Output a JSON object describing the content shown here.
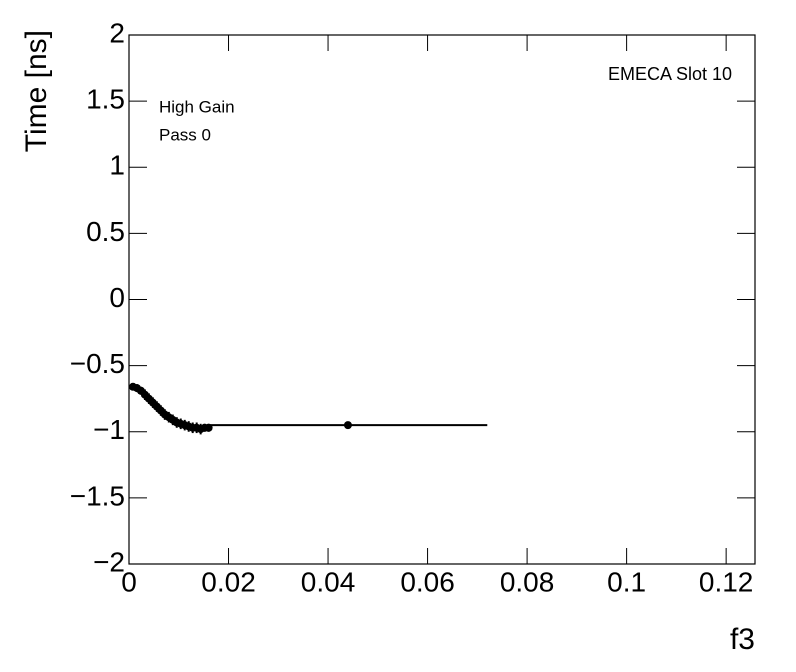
{
  "chart_data": {
    "type": "errorbar",
    "x_label": "f3",
    "y_label": "Time [ns]",
    "annotations": [
      "High Gain",
      "Pass 0"
    ],
    "corner_label": "EMECA Slot 10",
    "color": "#000000",
    "xlim": [
      0,
      0.1258
    ],
    "ylim": [
      -2,
      2
    ],
    "xticks": [
      0,
      0.02,
      0.04,
      0.06,
      0.08,
      0.1,
      0.12
    ],
    "yticks": [
      {
        "value": -2,
        "label": "−2"
      },
      {
        "value": -1.5,
        "label": "−1.5"
      },
      {
        "value": -1,
        "label": "−1"
      },
      {
        "value": -0.5,
        "label": "−0.5"
      },
      0,
      0.5,
      1,
      1.5,
      2
    ],
    "x": [
      0.0008,
      0.0016,
      0.0024,
      0.0032,
      0.004,
      0.0048,
      0.0056,
      0.0064,
      0.0072,
      0.008,
      0.0088,
      0.0096,
      0.0104,
      0.0112,
      0.012,
      0.0128,
      0.0136,
      0.0144,
      0.0152,
      0.016,
      0.044
    ],
    "values": [
      -0.66,
      -0.67,
      -0.69,
      -0.72,
      -0.75,
      -0.78,
      -0.81,
      -0.84,
      -0.87,
      -0.89,
      -0.91,
      -0.93,
      -0.94,
      -0.95,
      -0.96,
      -0.97,
      -0.97,
      -0.98,
      -0.97,
      -0.97,
      -0.95
    ],
    "errors": [
      0.02,
      0.03,
      0.03,
      0.04,
      0.04,
      0.04,
      0.04,
      0.04,
      0.04,
      0.04,
      0.04,
      0.04,
      0.04,
      0.04,
      0.04,
      0.04,
      0.04,
      0.04,
      0.03,
      0.03,
      0.01
    ],
    "x_errors": [
      0.0004,
      0.0004,
      0.0004,
      0.0004,
      0.0004,
      0.0004,
      0.0004,
      0.0004,
      0.0004,
      0.0004,
      0.0004,
      0.0004,
      0.0004,
      0.0004,
      0.0004,
      0.0004,
      0.0004,
      0.0004,
      0.0004,
      0.0004,
      0.028
    ]
  }
}
